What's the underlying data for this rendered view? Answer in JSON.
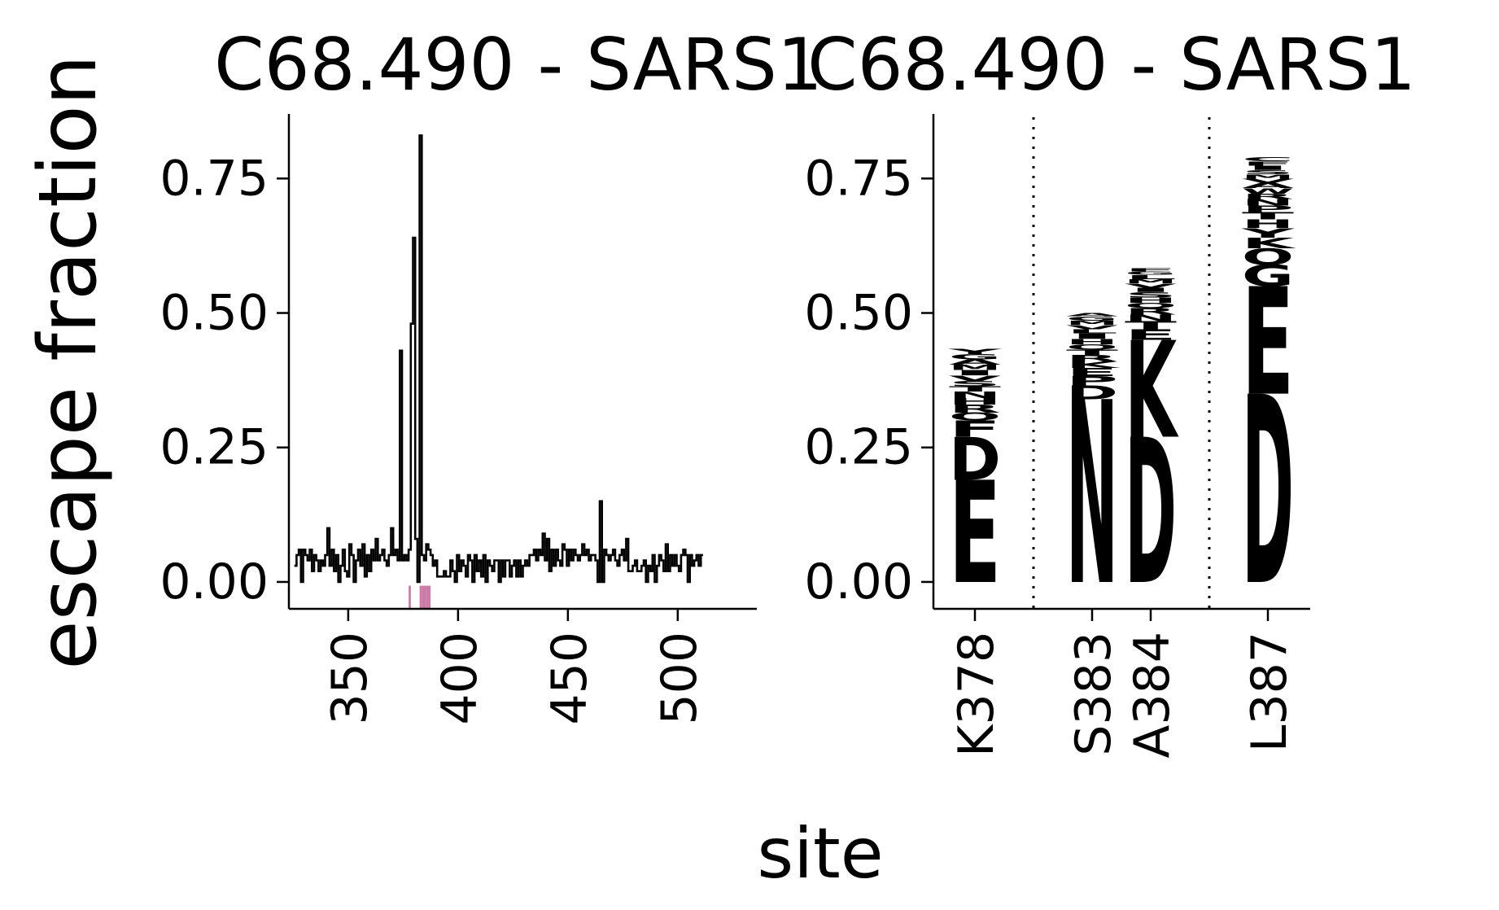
{
  "figure": {
    "ylabel": "escape fraction",
    "xlabel": "site"
  },
  "colors": {
    "line": "#000000",
    "highlight": "#cc79a7",
    "orange": "#e69f00",
    "gray": "#808080"
  },
  "chart_data": [
    {
      "type": "line",
      "title": "C68.490 - SARS1",
      "xlabel": "",
      "ylabel": "escape fraction",
      "xlim": [
        323,
        536
      ],
      "ylim": [
        -0.05,
        0.87
      ],
      "xticks": [
        350,
        400,
        450,
        500
      ],
      "xtick_labels": [
        "350",
        "400",
        "450",
        "500"
      ],
      "yticks": [
        0,
        0.25,
        0.5,
        0.75
      ],
      "ytick_labels": [
        "0.00",
        "0.25",
        "0.50",
        "0.75"
      ],
      "x_start": 326,
      "y_values": [
        0.03,
        0.05,
        0.06,
        0.0,
        0.06,
        0.05,
        0.04,
        0.06,
        0.02,
        0.05,
        0.04,
        0.02,
        0.04,
        0.03,
        0.05,
        0.1,
        0.03,
        0.06,
        0.02,
        0.05,
        0.0,
        0.03,
        0.06,
        0.02,
        0.01,
        0.07,
        0.05,
        0.0,
        0.04,
        0.06,
        0.03,
        0.07,
        0.01,
        0.05,
        0.02,
        0.06,
        0.04,
        0.08,
        0.04,
        0.05,
        0.06,
        0.04,
        0.03,
        0.05,
        0.1,
        0.05,
        0.06,
        0.04,
        0.43,
        0.04,
        0.05,
        0.04,
        0.06,
        0.48,
        0.64,
        0.08,
        0.0,
        0.83,
        0.05,
        0.04,
        0.07,
        0.06,
        0.05,
        0.03,
        0.04,
        0.01,
        0.01,
        0.01,
        0.02,
        0.01,
        0.01,
        0.04,
        0.02,
        0.0,
        0.05,
        0.02,
        0.04,
        0.03,
        0.01,
        0.05,
        0.04,
        0.0,
        0.05,
        0.02,
        0.04,
        0.01,
        0.05,
        0.0,
        0.04,
        0.03,
        0.02,
        0.04,
        0.04,
        0.0,
        0.04,
        0.01,
        0.04,
        0.04,
        0.01,
        0.03,
        0.04,
        0.01,
        0.04,
        0.01,
        0.03,
        0.04,
        0.03,
        0.05,
        0.05,
        0.06,
        0.04,
        0.06,
        0.05,
        0.09,
        0.04,
        0.08,
        0.02,
        0.06,
        0.03,
        0.06,
        0.04,
        0.03,
        0.07,
        0.06,
        0.03,
        0.06,
        0.04,
        0.06,
        0.05,
        0.04,
        0.05,
        0.07,
        0.05,
        0.06,
        0.04,
        0.05,
        0.05,
        0.04,
        0.0,
        0.15,
        0.0,
        0.06,
        0.05,
        0.04,
        0.05,
        0.06,
        0.04,
        0.03,
        0.05,
        0.06,
        0.04,
        0.08,
        0.02,
        0.02,
        0.03,
        0.04,
        0.02,
        0.02,
        0.03,
        0.04,
        0.0,
        0.03,
        0.02,
        0.05,
        0.0,
        0.03,
        0.05,
        0.04,
        0.02,
        0.07,
        0.02,
        0.05,
        0.03,
        0.05,
        0.03,
        0.02,
        0.05,
        0.06,
        0.05,
        0.0,
        0.05,
        0.03,
        0.04,
        0.05,
        0.03,
        0.05
      ],
      "highlight_sites": [
        378,
        383,
        384,
        385,
        386,
        387
      ]
    },
    {
      "type": "logo",
      "title": "C68.490 - SARS1",
      "ylim": [
        -0.05,
        0.87
      ],
      "yticks": [
        0,
        0.25,
        0.5,
        0.75
      ],
      "ytick_labels": [
        "0.00",
        "0.25",
        "0.50",
        "0.75"
      ],
      "sites": [
        "K378",
        "S383",
        "A384",
        "L387"
      ],
      "stacks": [
        {
          "site": "K378",
          "color": "orange",
          "letters": [
            [
              "E",
              0.19
            ],
            [
              "D",
              0.08
            ],
            [
              "F",
              0.03
            ],
            [
              "Q",
              0.015
            ],
            [
              "R",
              0.015
            ],
            [
              "H",
              0.012
            ],
            [
              "N",
              0.012
            ],
            [
              "T",
              0.01
            ],
            [
              "S",
              0.01
            ],
            [
              "V",
              0.01
            ],
            [
              "I",
              0.01
            ],
            [
              "M",
              0.01
            ],
            [
              "A",
              0.01
            ],
            [
              "G",
              0.01
            ],
            [
              "Y",
              0.01
            ]
          ]
        },
        {
          "site": "S383",
          "color": "orange",
          "letters": [
            [
              "N",
              0.34
            ],
            [
              "D",
              0.025
            ],
            [
              "P",
              0.018
            ],
            [
              "E",
              0.015
            ],
            [
              "K",
              0.012
            ],
            [
              "R",
              0.012
            ],
            [
              "T",
              0.01
            ],
            [
              "Q",
              0.01
            ],
            [
              "H",
              0.01
            ],
            [
              "I",
              0.01
            ],
            [
              "L",
              0.008
            ],
            [
              "V",
              0.008
            ],
            [
              "M",
              0.008
            ],
            [
              "G",
              0.008
            ],
            [
              "A",
              0.006
            ]
          ]
        },
        {
          "site": "A384",
          "color": "orange",
          "letters": [
            [
              "D",
              0.27
            ],
            [
              "K",
              0.18
            ],
            [
              "E",
              0.02
            ],
            [
              "T",
              0.015
            ],
            [
              "N",
              0.012
            ],
            [
              "R",
              0.012
            ],
            [
              "Q",
              0.01
            ],
            [
              "H",
              0.01
            ],
            [
              "S",
              0.01
            ],
            [
              "I",
              0.008
            ],
            [
              "V",
              0.008
            ],
            [
              "M",
              0.008
            ],
            [
              "L",
              0.008
            ],
            [
              "G",
              0.006
            ],
            [
              "F",
              0.006
            ]
          ]
        },
        {
          "site": "L387",
          "color": "gray",
          "letters": [
            [
              "D",
              0.35
            ],
            [
              "E",
              0.2
            ],
            [
              "G",
              0.04
            ],
            [
              "Q",
              0.03
            ],
            [
              "K",
              0.02
            ],
            [
              "Y",
              0.018
            ],
            [
              "H",
              0.016
            ],
            [
              "T",
              0.014
            ],
            [
              "P",
              0.012
            ],
            [
              "N",
              0.012
            ],
            [
              "R",
              0.01
            ],
            [
              "W",
              0.01
            ],
            [
              "A",
              0.01
            ],
            [
              "V",
              0.008
            ],
            [
              "M",
              0.008
            ],
            [
              "S",
              0.008
            ],
            [
              "I",
              0.008
            ],
            [
              "F",
              0.008
            ],
            [
              "C",
              0.008
            ]
          ]
        }
      ]
    }
  ]
}
